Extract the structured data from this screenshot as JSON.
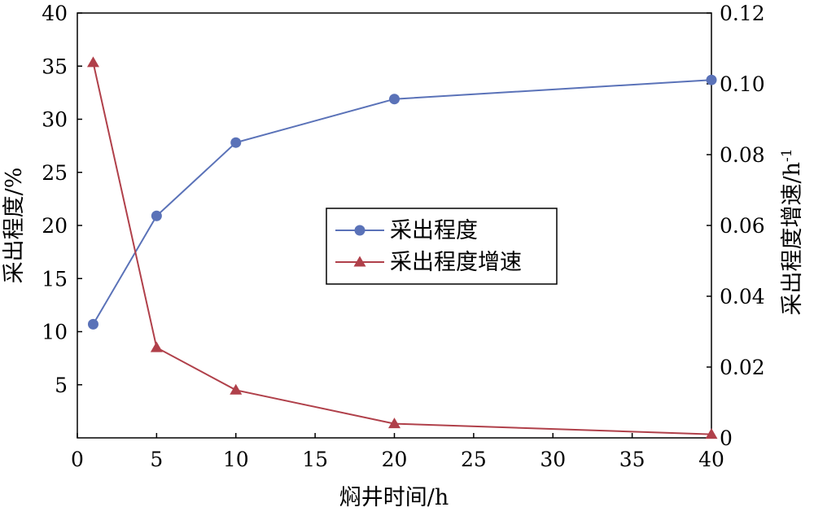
{
  "chart_data": {
    "type": "line",
    "x": [
      1,
      5,
      10,
      20,
      40
    ],
    "xlabel": "焖井时间/h",
    "x_ticks": [
      "0",
      "5",
      "10",
      "15",
      "20",
      "25",
      "30",
      "35",
      "40"
    ],
    "x_tick_values": [
      0,
      5,
      10,
      15,
      20,
      25,
      30,
      35,
      40
    ],
    "xlim": [
      0,
      40
    ],
    "ylabel_left": "采出程度/%",
    "ylim_left": [
      0,
      40
    ],
    "y_left_ticks": [
      "5",
      "10",
      "15",
      "20",
      "25",
      "30",
      "35",
      "40"
    ],
    "y_left_tick_values": [
      5,
      10,
      15,
      20,
      25,
      30,
      35,
      40
    ],
    "ylabel_right": "采出程度增速/h",
    "ylabel_right_superscript": "-1",
    "ylim_right": [
      0,
      0.12
    ],
    "y_right_ticks": [
      "0",
      "0.02",
      "0.04",
      "0.06",
      "0.08",
      "0.10",
      "0.12"
    ],
    "y_right_tick_values": [
      0,
      0.02,
      0.04,
      0.06,
      0.08,
      0.1,
      0.12
    ],
    "series": [
      {
        "name": "采出程度",
        "axis": "left",
        "marker": "circle",
        "color": "#5a72b8",
        "values": [
          10.7,
          20.9,
          27.8,
          31.9,
          33.7
        ]
      },
      {
        "name": "采出程度增速",
        "axis": "right",
        "marker": "triangle",
        "color": "#b0404a",
        "values": [
          0.106,
          0.0255,
          0.0135,
          0.004,
          0.001
        ]
      }
    ],
    "legend_position": "center",
    "grid": false
  }
}
